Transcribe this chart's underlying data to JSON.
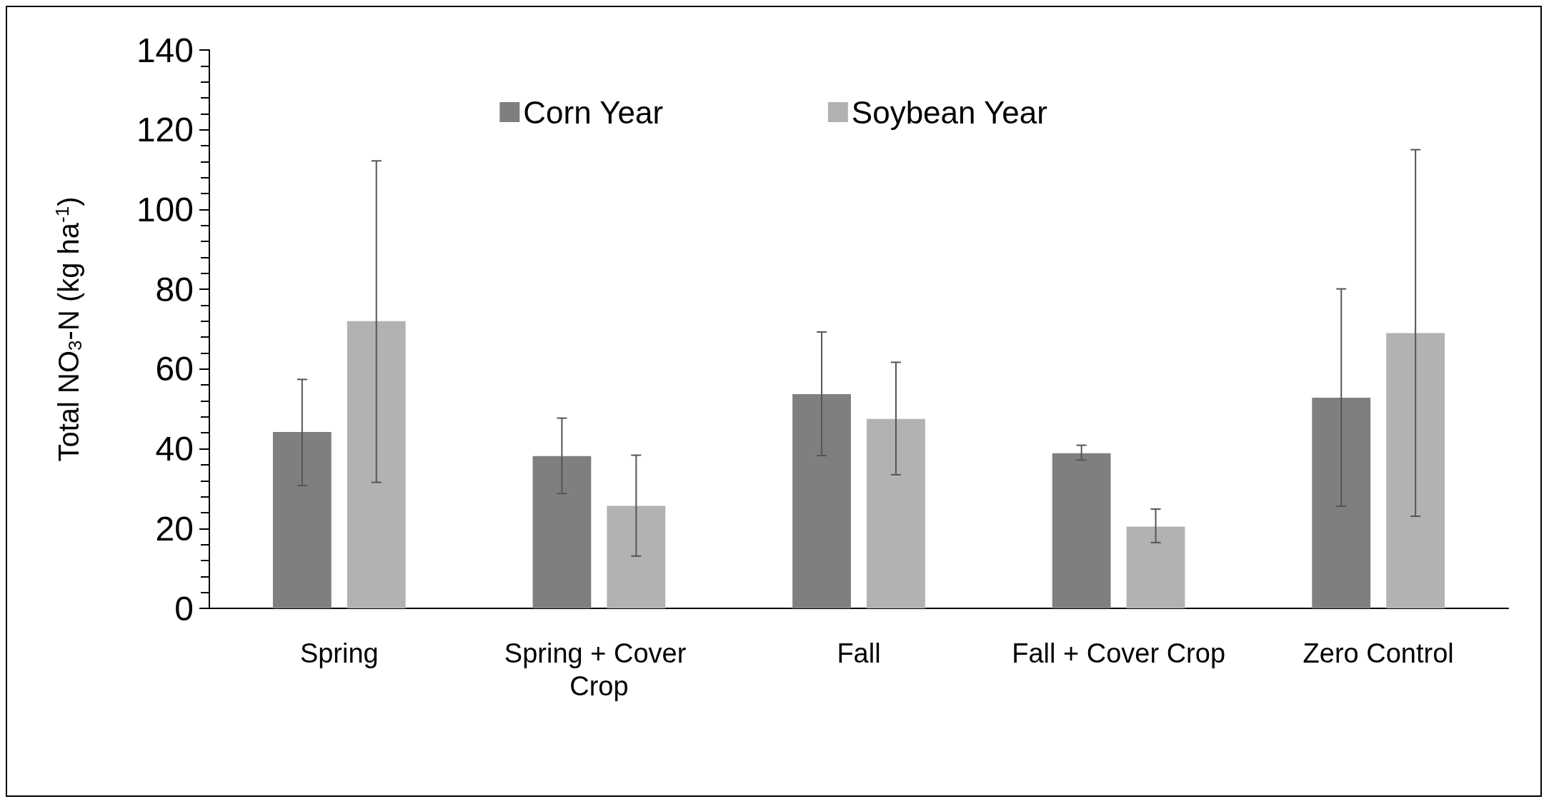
{
  "chart_data": {
    "type": "bar",
    "ylabel": "Total NO$_{3}$-N (kg ha$^{-1}$)",
    "categories": [
      "Spring",
      "Spring + Cover Crop",
      "Fall",
      "Fall + Cover Crop",
      "Zero Control"
    ],
    "series": [
      {
        "name": "Corn Year",
        "color": "#7f7f7f",
        "values": [
          44.2,
          38.2,
          53.7,
          38.9,
          52.8
        ],
        "errors": [
          [
            30.8,
            57.4
          ],
          [
            28.8,
            47.7
          ],
          [
            38.3,
            69.3
          ],
          [
            37.2,
            40.9
          ],
          [
            25.6,
            80.1
          ]
        ]
      },
      {
        "name": "Soybean Year",
        "color": "#b2b2b2",
        "values": [
          72.0,
          25.7,
          47.5,
          20.5,
          69.0
        ],
        "errors": [
          [
            31.6,
            112.2
          ],
          [
            13.1,
            38.4
          ],
          [
            33.5,
            61.7
          ],
          [
            16.5,
            24.9
          ],
          [
            23.1,
            115.0
          ]
        ]
      }
    ],
    "ylim": [
      0,
      140
    ],
    "yticks": [
      0,
      20,
      40,
      60,
      80,
      100,
      120,
      140
    ],
    "grid": false,
    "legend": "top"
  }
}
